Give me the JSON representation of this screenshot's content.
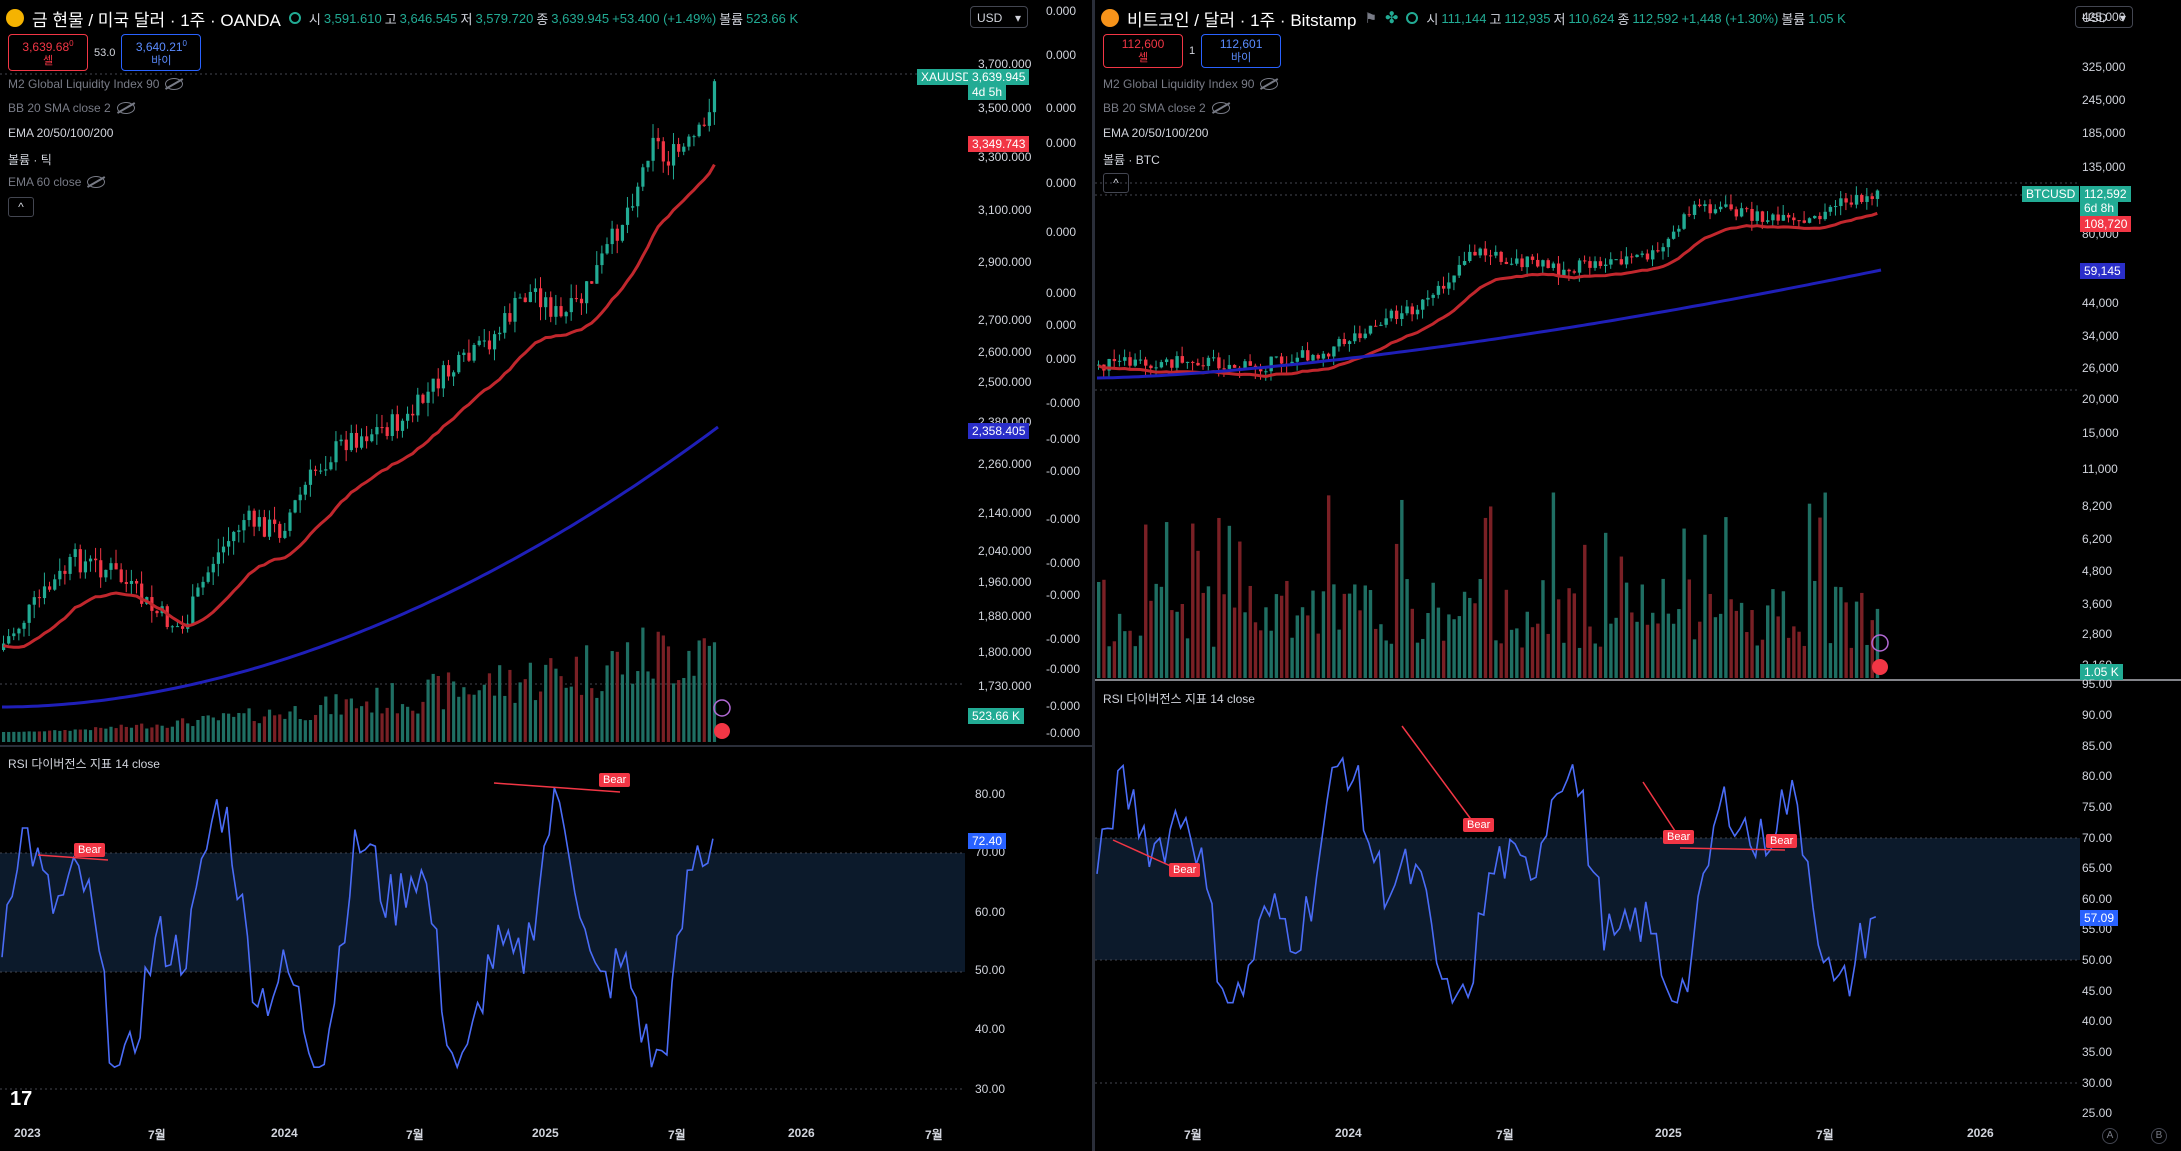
{
  "left": {
    "symbol_title": "금 현물 / 미국 달러 · 1주 · OANDA",
    "ohlc": [
      {
        "k": "시",
        "v": "3,591.610"
      },
      {
        "k": "고",
        "v": "3,646.545"
      },
      {
        "k": "저",
        "v": "3,579.720"
      },
      {
        "k": "종",
        "v": "3,639.945"
      },
      {
        "k": "",
        "v": "+53.400 (+1.49%)"
      },
      {
        "k": "볼륨",
        "v": "523.66 K"
      }
    ],
    "sell_price": "3,639.68",
    "sell_sup": "0",
    "sell_label": "셀",
    "spread": "53.0",
    "buy_price": "3,640.21",
    "buy_sup": "0",
    "buy_label": "바이",
    "currency": "USD",
    "legend": {
      "m2": "M2 Global Liquidity Index 90",
      "bb": "BB 20 SMA close 2",
      "ema": "EMA 20/50/100/200",
      "vol": "볼륨 · 틱",
      "ema60": "EMA 60 close"
    },
    "price_axis": [
      "3,700.000",
      "3,500.000",
      "3,300.000",
      "3,100.000",
      "2,900.000",
      "2,700.000",
      "2,600.000",
      "2,500.000",
      "2,380.000",
      "2,260.000",
      "2,140.000",
      "2,040.000",
      "1,960.000",
      "1,880.000",
      "1,800.000",
      "1,730.000"
    ],
    "secondary_axis": [
      "0.000",
      "0.000",
      "0.000",
      "0.000",
      "0.000",
      "0.000",
      "0.000",
      "0.000",
      "0.000",
      "-0.000",
      "-0.000",
      "-0.000",
      "-0.000",
      "-0.000",
      "-0.000",
      "-0.000",
      "-0.000",
      "-0.000",
      "-0.000"
    ],
    "tags": {
      "symbol": "XAUUSD",
      "price": "3,639.945",
      "countdown": "4d 5h",
      "ema_red": "3,349.743",
      "ema_blue": "2,358.405",
      "volume": "523.66 K"
    },
    "rsi_title": "RSI 다이버전스 지표 14 close",
    "rsi_axis": [
      "80.00",
      "70.00",
      "60.00",
      "50.00",
      "40.00",
      "30.00"
    ],
    "rsi_value": "72.40",
    "bear_label": "Bear",
    "time_axis": [
      "2023",
      "7월",
      "2024",
      "7월",
      "2025",
      "7월",
      "2026",
      "7월"
    ],
    "colors": {
      "up": "#22ab94",
      "down": "#f23645",
      "ema_red": "#c1272d",
      "ema_blue": "#1f1fb8",
      "rsi": "#4a6cf7",
      "bg": "#000000"
    }
  },
  "right": {
    "symbol_title": "비트코인 / 달러 · 1주 · Bitstamp",
    "ohlc": [
      {
        "k": "시",
        "v": "111,144"
      },
      {
        "k": "고",
        "v": "112,935"
      },
      {
        "k": "저",
        "v": "110,624"
      },
      {
        "k": "종",
        "v": "112,592"
      },
      {
        "k": "",
        "v": "+1,448 (+1.30%)"
      },
      {
        "k": "볼륨",
        "v": "1.05 K"
      }
    ],
    "sell_price": "112,600",
    "sell_label": "셀",
    "spread": "1",
    "buy_price": "112,601",
    "buy_label": "바이",
    "currency": "USD",
    "legend": {
      "m2": "M2 Global Liquidity Index 90",
      "bb": "BB 20 SMA close 2",
      "ema": "EMA 20/50/100/200",
      "vol": "볼륨 · BTC"
    },
    "price_axis": [
      "425,000",
      "325,000",
      "245,000",
      "185,000",
      "135,000",
      "80,000",
      "44,000",
      "34,000",
      "26,000",
      "20,000",
      "15,000",
      "11,000",
      "8,200",
      "6,200",
      "4,800",
      "3,600",
      "2,800",
      "2,160"
    ],
    "tags": {
      "symbol": "BTCUSD",
      "price": "112,592",
      "countdown": "6d 8h",
      "ema_red": "108,720",
      "ema_blue": "59,145",
      "volume": "1.05 K"
    },
    "rsi_title": "RSI 다이버전스 지표 14 close",
    "rsi_axis": [
      "95.00",
      "90.00",
      "85.00",
      "80.00",
      "75.00",
      "70.00",
      "65.00",
      "60.00",
      "55.00",
      "50.00",
      "45.00",
      "40.00",
      "35.00",
      "30.00",
      "25.00"
    ],
    "rsi_value": "57.09",
    "bear_label": "Bear",
    "time_axis": [
      "7월",
      "2024",
      "7월",
      "2025",
      "7월",
      "2026"
    ],
    "corner_a": "A",
    "corner_b": "B"
  }
}
